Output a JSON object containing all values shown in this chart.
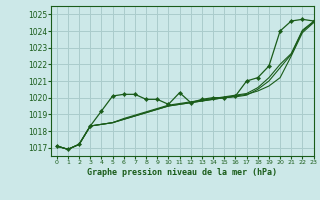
{
  "title": "Graphe pression niveau de la mer (hPa)",
  "bg_color": "#cce8e8",
  "grid_color": "#aacccc",
  "line_color": "#1a5c1a",
  "xlim": [
    -0.5,
    23
  ],
  "ylim": [
    1016.5,
    1025.5
  ],
  "yticks": [
    1017,
    1018,
    1019,
    1020,
    1021,
    1022,
    1023,
    1024,
    1025
  ],
  "xticks": [
    0,
    1,
    2,
    3,
    4,
    5,
    6,
    7,
    8,
    9,
    10,
    11,
    12,
    13,
    14,
    15,
    16,
    17,
    18,
    19,
    20,
    21,
    22,
    23
  ],
  "series_markers": [
    1017.1,
    1016.9,
    1017.2,
    1018.3,
    1019.2,
    1020.1,
    1020.2,
    1020.2,
    1019.9,
    1019.9,
    1019.6,
    1020.3,
    1019.7,
    1019.9,
    1020.0,
    1020.0,
    1020.1,
    1021.0,
    1021.2,
    1021.9,
    1024.0,
    1024.6,
    1024.7,
    1024.6
  ],
  "series_smooth1": [
    1017.1,
    1016.9,
    1017.2,
    1018.3,
    1018.4,
    1018.5,
    1018.7,
    1018.9,
    1019.1,
    1019.3,
    1019.5,
    1019.6,
    1019.7,
    1019.8,
    1019.9,
    1020.0,
    1020.1,
    1020.2,
    1020.4,
    1020.7,
    1021.2,
    1022.5,
    1023.9,
    1024.5
  ],
  "series_smooth2": [
    1017.1,
    1016.9,
    1017.2,
    1018.3,
    1018.4,
    1018.5,
    1018.7,
    1018.9,
    1019.1,
    1019.3,
    1019.5,
    1019.6,
    1019.7,
    1019.8,
    1019.9,
    1020.0,
    1020.05,
    1020.15,
    1020.5,
    1021.0,
    1021.8,
    1022.6,
    1024.0,
    1024.55
  ],
  "series_smooth3": [
    1017.1,
    1016.9,
    1017.2,
    1018.3,
    1018.4,
    1018.5,
    1018.75,
    1018.95,
    1019.15,
    1019.35,
    1019.55,
    1019.65,
    1019.75,
    1019.85,
    1019.95,
    1020.05,
    1020.15,
    1020.25,
    1020.6,
    1021.2,
    1022.0,
    1022.65,
    1024.05,
    1024.58
  ]
}
